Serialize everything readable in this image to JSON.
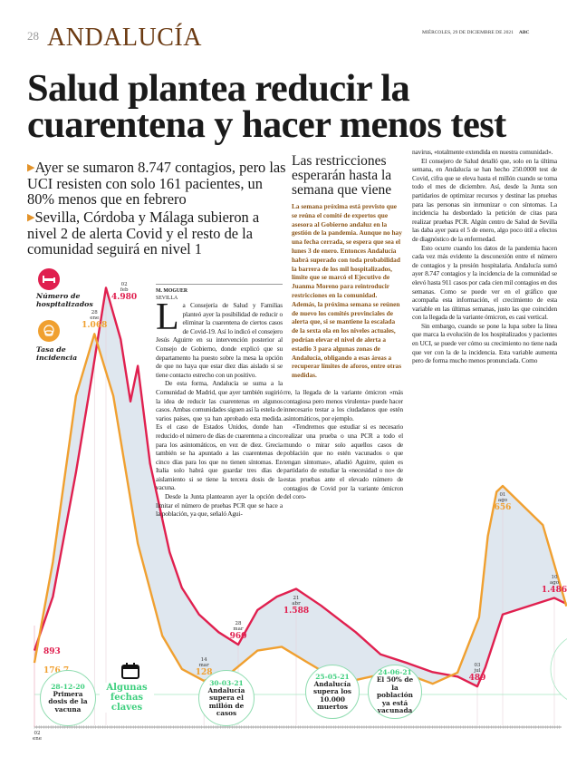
{
  "header": {
    "page_number": "28",
    "section": "ANDALUCÍA",
    "date": "MIÉRCOLES, 29 DE DICIEMBRE DE 2021",
    "brand": "ABC"
  },
  "headline": "Salud plantea reducir la cuarentena y hacer menos test",
  "subheads": [
    "Ayer se sumaron 8.747 contagios, pero las UCI resisten con solo 161 pacientes, un 80% menos que en febrero",
    "Sevilla, Córdoba y Málaga subieron a nivel 2 de alerta Covid y el resto de la comunidad seguirá en nivel 1"
  ],
  "byline": {
    "author": "M. MOGUER",
    "place": "SEVILLA"
  },
  "article": {
    "dropcap": "L",
    "col1": [
      "a Consejería de Salud y Familias planteó ayer la posibilidad de reducir o eliminar la cuarentena de ciertos casos de Covid-19. Así lo indicó el consejero Jesús Aguirre en su intervención posterior al Consejo de Gobierno, donde explicó que su departamento ha puesto sobre la mesa la opción de que no haya que estar diez días aislado si se tiene contacto estrecho con un positivo.",
      "De esta forma, Andalucía se suma a la Comunidad de Madrid, que ayer también sugirió la idea de reducir las cuarentenas en algunos casos. Ambas comunidades siguen así la estela de varios países, que ya han aprobado esta medida. Es el caso de Estados Unidos, donde han reducido el número de días de cuarentena a cinco para los asintomáticos, en vez de diez. Grecia también se ha apuntado a las cuarentenas de cinco días para los que no tienen síntomas. En Italia solo habrá que guardar tres días de aislamiento si se tiene la tercera dosis de la vacuna.",
      "Desde la Junta plantearon ayer la opción de limitar el número de pruebas PCR que se hace a la población, ya que, señaló Agui-"
    ],
    "col2": [
      "rre, la llegada de la variante ómicron «más contagiosa pero menos virulenta» puede hacer innecesario testar a los ciudadanos que estén asintomáticos, por ejemplo.",
      "«Tendremos que estudiar si es necesario realizar una prueba o una PCR a todo el mundo o mirar solo aquellos casos de población que no estén vacunados o que tengan síntomas», añadió Aguirre, quien es partidario de estudiar la «necesidad o no» de estas pruebas ante el elevado número de contagios de Covid por la variante ómicron del coro-"
    ],
    "col3": [
      "navirus, «totalmente extendida en nuestra comunidad».",
      "El consejero de Salud detalló que, solo en la última semana, en Andalucía se han hecho 250.0000 test de Covid, cifra que se eleva hasta el millón cuando se toma todo el mes de diciembre. Así, desde la Junta son partidarios de optimizar recursos y destinar las pruebas para las personas sin inmunizar o con síntomas. La incidencia ha desbordado la petición de citas para realizar pruebas PCR. Algún centro de Salud de Sevilla las daba ayer para el 5 de enero, algo poco útil a efectos de diagnóstico de la enfermedad.",
      "Esto ocurre cuando los datos de la pandemia hacen cada vez más evidente la desconexión entre el número de contagios y la presión hospitalaria. Andalucía sumó ayer 8.747 contagios y la incidencia de la comunidad se elevó hasta 911 casos por cada cien mil contagios en dos semanas. Como se puede ver en el gráfico que acompaña esta información, el crecimiento de esta variable en las últimas semanas, justo las que coinciden con la llegada de la variante ómicron, es casi vertical.",
      "Sin embargo, cuando se pone la lupa sobre la línea que marca la evolución de los hospitalizados y pacientes en UCI, se puede ver cómo su crecimiento no tiene nada que ver con la de la incidencia. Esta variable aumenta pero de forma mucho menos pronunciada. Como"
    ]
  },
  "sidebar": {
    "title": "Las restricciones esperarán hasta la semana que viene",
    "body": "La semana próxima está previsto que se reúna el comité de expertos que asesora al Gobierno andaluz en la gestión de la pandemia. Aunque no hay una fecha cerrada, se espera que sea el lunes 3 de enero. Entonces Andalucía habrá superado con toda probabilidad la barrera de los mil hospitalizados, límite que se marcó el Ejecutivo de Juanma Moreno para reintroducir restricciones en la comunidad. Además, la próxima semana se reúnen de nuevo los comités provinciales de alerta que, si se mantiene la escalada de la sexta ola en los niveles actuales, podrían elevar el nivel de alerta a estadio 3 para algunas zonas de Andalucía, obligando a esas áreas a recuperar límites de aforos, entre otras medidas.",
    "color": "#8a5418"
  },
  "chart_data": {
    "type": "line",
    "x_tick_labels": [
      {
        "day": "02",
        "month": "ene"
      }
    ],
    "series": [
      {
        "name": "Número de hospitalizados",
        "color": "#e0204f",
        "icon": "bed-icon",
        "points": [
          [
            "2021-01-02",
            893
          ],
          [
            "2021-01-10",
            1500
          ],
          [
            "2021-01-20",
            2900
          ],
          [
            "2021-01-27",
            4000
          ],
          [
            "2021-02-02",
            4980
          ],
          [
            "2021-02-08",
            4400
          ],
          [
            "2021-02-12",
            3700
          ],
          [
            "2021-02-15",
            4100
          ],
          [
            "2021-02-20",
            3000
          ],
          [
            "2021-02-28",
            2000
          ],
          [
            "2021-03-05",
            1600
          ],
          [
            "2021-03-12",
            1300
          ],
          [
            "2021-03-20",
            1100
          ],
          [
            "2021-03-28",
            960
          ],
          [
            "2021-04-05",
            1350
          ],
          [
            "2021-04-13",
            1500
          ],
          [
            "2021-04-21",
            1588
          ],
          [
            "2021-05-01",
            1400
          ],
          [
            "2021-05-15",
            1100
          ],
          [
            "2021-05-25",
            850
          ],
          [
            "2021-06-05",
            750
          ],
          [
            "2021-06-15",
            650
          ],
          [
            "2021-06-25",
            600
          ],
          [
            "2021-07-03",
            489
          ],
          [
            "2021-07-12",
            700
          ],
          [
            "2021-07-22",
            1000
          ],
          [
            "2021-08-01",
            1300
          ],
          [
            "2021-08-10",
            1486
          ],
          [
            "2021-08-15",
            1420
          ]
        ]
      },
      {
        "name": "Tasa de incidencia",
        "color": "#f0a030",
        "icon": "mask-icon",
        "points": [
          [
            "2021-01-02",
            176.7
          ],
          [
            "2021-01-10",
            450
          ],
          [
            "2021-01-20",
            900
          ],
          [
            "2021-01-28",
            1068
          ],
          [
            "2021-02-05",
            900
          ],
          [
            "2021-02-15",
            500
          ],
          [
            "2021-02-25",
            250
          ],
          [
            "2021-03-05",
            160
          ],
          [
            "2021-03-14",
            128
          ],
          [
            "2021-03-25",
            150
          ],
          [
            "2021-04-05",
            210
          ],
          [
            "2021-04-15",
            220
          ],
          [
            "2021-04-25",
            180
          ],
          [
            "2021-05-05",
            140
          ],
          [
            "2021-05-15",
            130
          ],
          [
            "2021-05-25",
            145
          ],
          [
            "2021-06-05",
            145
          ],
          [
            "2021-06-15",
            120
          ],
          [
            "2021-06-25",
            150
          ],
          [
            "2021-07-05",
            300
          ],
          [
            "2021-07-15",
            520
          ],
          [
            "2021-07-25",
            640
          ],
          [
            "2021-08-01",
            656
          ],
          [
            "2021-08-08",
            550
          ],
          [
            "2021-08-15",
            330
          ]
        ]
      }
    ],
    "annotations": [
      {
        "series": 0,
        "date": "2021-01-02",
        "day": "",
        "month": "",
        "value": "893"
      },
      {
        "series": 1,
        "date": "2021-01-02",
        "day": "",
        "month": "",
        "value": "176,7"
      },
      {
        "series": 0,
        "date": "2021-02-02",
        "day": "02",
        "month": "feb",
        "value": "4.980"
      },
      {
        "series": 1,
        "date": "2021-01-28",
        "day": "28",
        "month": "ene",
        "value": "1.068"
      },
      {
        "series": 1,
        "date": "2021-03-14",
        "day": "14",
        "month": "mar",
        "value": "128"
      },
      {
        "series": 0,
        "date": "2021-03-28",
        "day": "28",
        "month": "mar",
        "value": "960"
      },
      {
        "series": 0,
        "date": "2021-04-21",
        "day": "21",
        "month": "abr",
        "value": "1.588"
      },
      {
        "series": 0,
        "date": "2021-07-03",
        "day": "03",
        "month": "jul",
        "value": "489"
      },
      {
        "series": 1,
        "date": "2021-08-01",
        "day": "01",
        "month": "ago",
        "value": "656"
      },
      {
        "series": 0,
        "date": "2021-08-10",
        "day": "10",
        "month": "ago",
        "value": "1.486"
      }
    ],
    "fill_color": "#dfe7ef",
    "grid": false,
    "legend": "left"
  },
  "timeline": {
    "title": "Algunas fechas claves",
    "icon": "calendar-icon",
    "color": "#3ecf7e",
    "events": [
      {
        "date": "28-12-20",
        "text": "Primera dosis de la vacuna"
      },
      {
        "date": "30-03-21",
        "text": "Andalucía supera el millón de casos"
      },
      {
        "date": "25-05-21",
        "text": "Andalucía supera los 10.000 muertos"
      },
      {
        "date": "24-06-21",
        "text": "El 50% de la población ya está vacunada"
      }
    ]
  }
}
